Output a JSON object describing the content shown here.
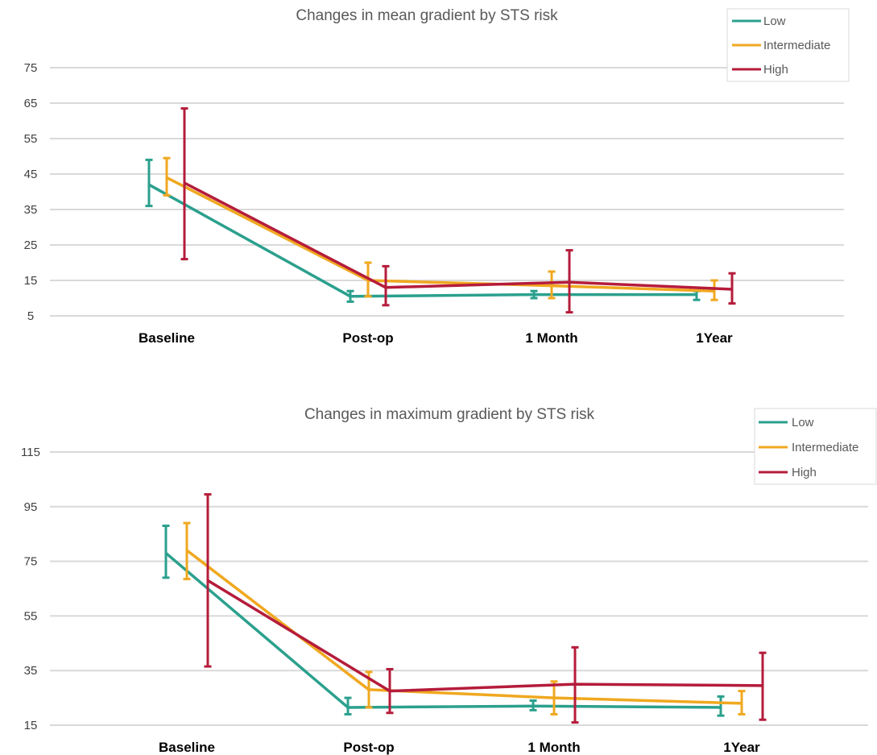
{
  "colors": {
    "Low": "#2ba08d",
    "Intermediate": "#f0a820",
    "High": "#b51c3b"
  },
  "chart_data": [
    {
      "type": "line",
      "title": "Changes in mean gradient by STS risk",
      "categories": [
        "Baseline",
        "Post-op",
        "1 Month",
        "1Year"
      ],
      "ylim": [
        5,
        75
      ],
      "yticks": [
        5,
        15,
        25,
        35,
        45,
        55,
        65,
        75
      ],
      "grid": true,
      "legend_position": "top-right",
      "series": [
        {
          "name": "Low",
          "values": [
            42,
            10.5,
            11,
            11
          ],
          "error_low": [
            36,
            9,
            10,
            9.5
          ],
          "error_high": [
            49,
            12,
            12,
            12
          ]
        },
        {
          "name": "Intermediate",
          "values": [
            44,
            15,
            13.5,
            12
          ],
          "error_low": [
            39,
            10.5,
            10,
            9.5
          ],
          "error_high": [
            49.5,
            20,
            17.5,
            15
          ]
        },
        {
          "name": "High",
          "values": [
            42.5,
            13,
            14.5,
            12.5
          ],
          "error_low": [
            21,
            8,
            6,
            8.5
          ],
          "error_high": [
            63.5,
            19,
            23.5,
            17
          ]
        }
      ]
    },
    {
      "type": "line",
      "title": "Changes in maximum gradient by STS risk",
      "categories": [
        "Baseline",
        "Post-op",
        "1 Month",
        "1Year"
      ],
      "ylim": [
        15,
        115
      ],
      "yticks": [
        15,
        35,
        55,
        75,
        95,
        115
      ],
      "grid": true,
      "legend_position": "top-right",
      "series": [
        {
          "name": "Low",
          "values": [
            78,
            21.5,
            22,
            21.5
          ],
          "error_low": [
            69,
            19,
            20.5,
            18.5
          ],
          "error_high": [
            88,
            25,
            24,
            25.5
          ]
        },
        {
          "name": "Intermediate",
          "values": [
            79,
            28,
            25,
            23
          ],
          "error_low": [
            68.5,
            21.5,
            19,
            19
          ],
          "error_high": [
            89,
            34.5,
            31,
            27.5
          ]
        },
        {
          "name": "High",
          "values": [
            68,
            27.5,
            30,
            29.5
          ],
          "error_low": [
            36.5,
            19.5,
            16,
            17
          ],
          "error_high": [
            99.5,
            35.5,
            43.5,
            41.5
          ]
        }
      ]
    }
  ]
}
